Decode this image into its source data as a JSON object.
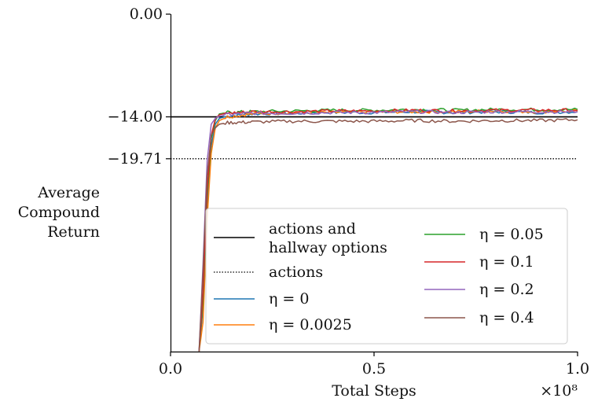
{
  "chart_data": {
    "type": "line",
    "xlabel": "Total Steps",
    "x_multiplier": "×10⁸",
    "ylabel": [
      "Average",
      "Compound",
      "Return"
    ],
    "xlim": [
      0,
      1.0
    ],
    "ylim": [
      -46,
      0
    ],
    "x_ticks": [
      {
        "value": 0.0,
        "label": "0.0"
      },
      {
        "value": 0.5,
        "label": "0.5"
      },
      {
        "value": 1.0,
        "label": "1.0"
      }
    ],
    "y_ticks": [
      {
        "value": 0.0,
        "label": "0.00"
      },
      {
        "value": -14.0,
        "label": "−14.00"
      },
      {
        "value": -19.71,
        "label": "−19.71"
      }
    ],
    "grid": false,
    "legend_position": "lower-right",
    "reference_lines": [
      {
        "name": "actions and hallway options",
        "value": -14.0,
        "color": "#000000",
        "style": "solid"
      },
      {
        "name": "actions",
        "value": -19.71,
        "color": "#000000",
        "style": "dotted"
      }
    ],
    "series": [
      {
        "name": "η = 0",
        "color": "#1f77b4",
        "x": [
          0.07,
          0.08,
          0.09,
          0.1,
          0.11,
          0.12,
          0.14,
          0.2,
          0.3,
          0.4,
          0.5,
          0.6,
          0.7,
          0.8,
          0.9,
          1.0
        ],
        "values": [
          -46,
          -40,
          -26,
          -18,
          -15,
          -14.2,
          -13.9,
          -13.6,
          -13.5,
          -13.4,
          -13.4,
          -13.3,
          -13.4,
          -13.3,
          -13.4,
          -13.3
        ]
      },
      {
        "name": "η = 0.0025",
        "color": "#ff7f0e",
        "x": [
          0.07,
          0.08,
          0.09,
          0.1,
          0.11,
          0.12,
          0.14,
          0.2,
          0.3,
          0.4,
          0.5,
          0.6,
          0.7,
          0.8,
          0.9,
          1.0
        ],
        "values": [
          -46,
          -42,
          -28,
          -19,
          -15.5,
          -14.5,
          -14.0,
          -13.6,
          -13.4,
          -13.4,
          -13.3,
          -13.3,
          -13.3,
          -13.2,
          -13.3,
          -13.2
        ]
      },
      {
        "name": "η = 0.05",
        "color": "#2ca02c",
        "x": [
          0.07,
          0.08,
          0.09,
          0.1,
          0.11,
          0.12,
          0.14,
          0.2,
          0.3,
          0.4,
          0.5,
          0.6,
          0.7,
          0.8,
          0.9,
          1.0
        ],
        "values": [
          -46,
          -39,
          -25,
          -17,
          -14.5,
          -13.6,
          -13.4,
          -13.3,
          -13.2,
          -13.1,
          -13.1,
          -13.0,
          -13.1,
          -13.0,
          -13.0,
          -13.0
        ]
      },
      {
        "name": "η = 0.1",
        "color": "#d62728",
        "x": [
          0.07,
          0.08,
          0.09,
          0.1,
          0.11,
          0.12,
          0.14,
          0.2,
          0.3,
          0.4,
          0.5,
          0.6,
          0.7,
          0.8,
          0.9,
          1.0
        ],
        "values": [
          -46,
          -38,
          -24,
          -16.5,
          -14.3,
          -13.7,
          -13.5,
          -13.3,
          -13.3,
          -13.2,
          -13.2,
          -13.1,
          -13.2,
          -13.1,
          -13.1,
          -13.1
        ]
      },
      {
        "name": "η = 0.2",
        "color": "#9467bd",
        "x": [
          0.07,
          0.08,
          0.09,
          0.1,
          0.11,
          0.12,
          0.14,
          0.2,
          0.3,
          0.4,
          0.5,
          0.6,
          0.7,
          0.8,
          0.9,
          1.0
        ],
        "values": [
          -46,
          -34,
          -20,
          -15,
          -14.2,
          -13.9,
          -13.7,
          -13.5,
          -13.5,
          -13.4,
          -13.4,
          -13.3,
          -13.4,
          -13.3,
          -13.3,
          -13.3
        ]
      },
      {
        "name": "η = 0.4",
        "color": "#8c564b",
        "x": [
          0.07,
          0.08,
          0.09,
          0.1,
          0.11,
          0.12,
          0.14,
          0.2,
          0.3,
          0.4,
          0.5,
          0.6,
          0.7,
          0.8,
          0.9,
          1.0
        ],
        "values": [
          -46,
          -35,
          -22,
          -16.5,
          -15.5,
          -15.0,
          -14.8,
          -14.7,
          -14.6,
          -14.6,
          -14.6,
          -14.5,
          -14.6,
          -14.5,
          -14.5,
          -14.4
        ]
      }
    ]
  }
}
